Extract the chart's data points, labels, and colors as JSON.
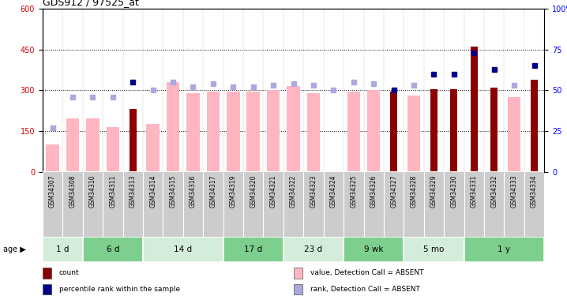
{
  "title": "GDS912 / 97525_at",
  "samples": [
    "GSM34307",
    "GSM34308",
    "GSM34310",
    "GSM34311",
    "GSM34313",
    "GSM34314",
    "GSM34315",
    "GSM34316",
    "GSM34317",
    "GSM34319",
    "GSM34320",
    "GSM34321",
    "GSM34322",
    "GSM34323",
    "GSM34324",
    "GSM34325",
    "GSM34326",
    "GSM34327",
    "GSM34328",
    "GSM34329",
    "GSM34330",
    "GSM34331",
    "GSM34332",
    "GSM34333",
    "GSM34334"
  ],
  "count_values": [
    null,
    null,
    null,
    null,
    230,
    null,
    null,
    null,
    null,
    null,
    null,
    null,
    null,
    null,
    null,
    null,
    null,
    295,
    null,
    305,
    305,
    460,
    310,
    null,
    340
  ],
  "value_absent": [
    100,
    195,
    195,
    165,
    null,
    175,
    330,
    290,
    295,
    295,
    295,
    300,
    315,
    290,
    null,
    295,
    300,
    null,
    280,
    null,
    null,
    null,
    null,
    275,
    null
  ],
  "percentile_present": [
    null,
    null,
    null,
    null,
    55,
    null,
    null,
    null,
    null,
    null,
    null,
    null,
    null,
    null,
    null,
    null,
    null,
    50,
    null,
    60,
    60,
    73,
    63,
    null,
    65
  ],
  "rank_absent": [
    27,
    46,
    46,
    46,
    null,
    50,
    55,
    52,
    54,
    52,
    52,
    53,
    54,
    53,
    50,
    55,
    54,
    null,
    53,
    null,
    null,
    null,
    null,
    53,
    null
  ],
  "age_groups": [
    {
      "label": "1 d",
      "start": 0,
      "end": 1,
      "color": "#d4edda"
    },
    {
      "label": "6 d",
      "start": 2,
      "end": 4,
      "color": "#7dcf8e"
    },
    {
      "label": "14 d",
      "start": 5,
      "end": 8,
      "color": "#d4edda"
    },
    {
      "label": "17 d",
      "start": 9,
      "end": 11,
      "color": "#7dcf8e"
    },
    {
      "label": "23 d",
      "start": 12,
      "end": 14,
      "color": "#d4edda"
    },
    {
      "label": "9 wk",
      "start": 15,
      "end": 17,
      "color": "#7dcf8e"
    },
    {
      "label": "5 mo",
      "start": 18,
      "end": 20,
      "color": "#d4edda"
    },
    {
      "label": "1 y",
      "start": 21,
      "end": 24,
      "color": "#7dcf8e"
    }
  ],
  "ylim_left": [
    0,
    600
  ],
  "ylim_right": [
    0,
    100
  ],
  "yticks_left": [
    0,
    150,
    300,
    450,
    600
  ],
  "yticks_right": [
    0,
    25,
    50,
    75,
    100
  ],
  "bar_color_count": "#8B0000",
  "bar_color_absent": "#FFB6C1",
  "marker_color_present": "#00008B",
  "marker_color_absent": "#aaaadd",
  "legend_items": [
    {
      "label": "count",
      "color": "#8B0000"
    },
    {
      "label": "percentile rank within the sample",
      "color": "#00008B"
    },
    {
      "label": "value, Detection Call = ABSENT",
      "color": "#FFB6C1"
    },
    {
      "label": "rank, Detection Call = ABSENT",
      "color": "#aaaadd"
    }
  ]
}
